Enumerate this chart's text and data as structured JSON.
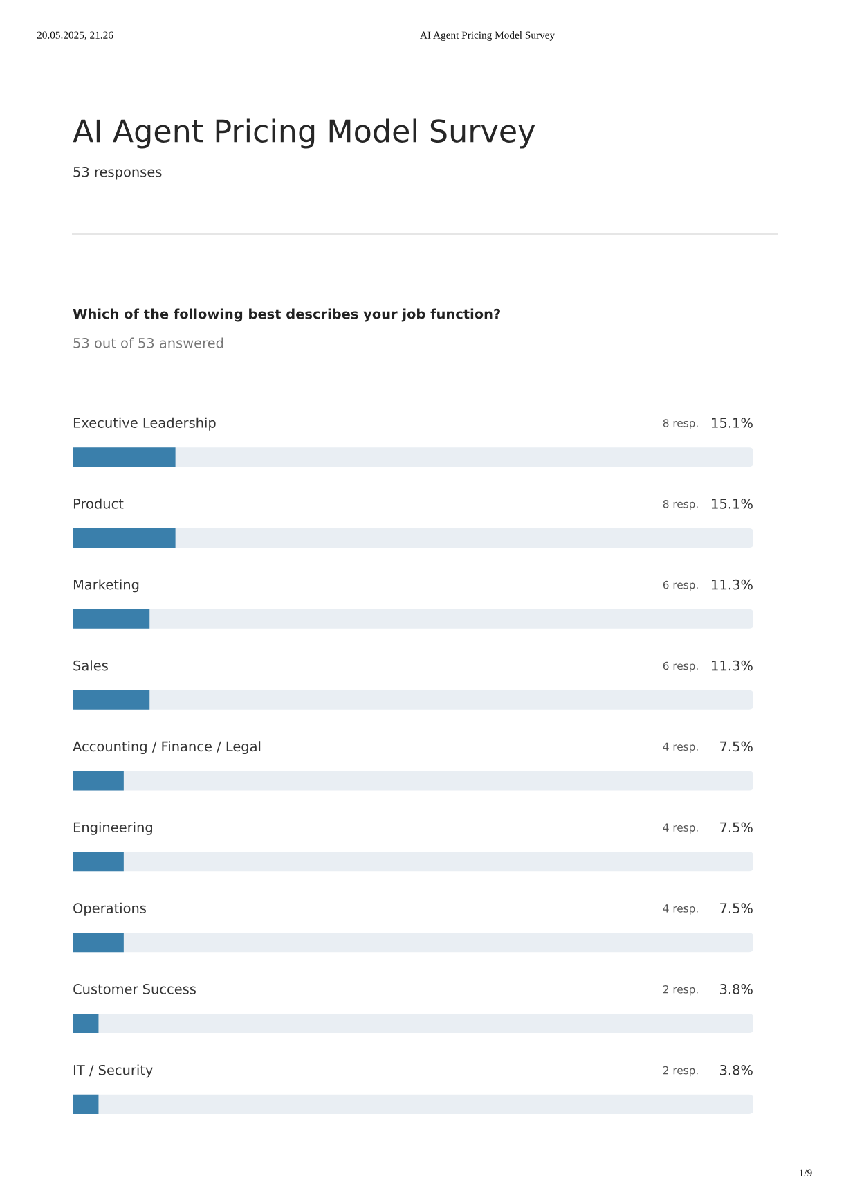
{
  "chart_data": {
    "type": "bar",
    "orientation": "horizontal",
    "title": "AI Agent Pricing Model Survey",
    "subtitle": "53 responses",
    "categories": [
      "Executive Leadership",
      "Product",
      "Marketing",
      "Sales",
      "Accounting / Finance / Legal",
      "Engineering",
      "Operations",
      "Customer Success",
      "IT / Security"
    ],
    "values": [
      15.1,
      15.1,
      11.3,
      11.3,
      7.5,
      7.5,
      7.5,
      3.8,
      3.8
    ],
    "value_labels": [
      "15.1%",
      "15.1%",
      "11.3%",
      "11.3%",
      "7.5%",
      "7.5%",
      "7.5%",
      "3.8%",
      "3.8%"
    ],
    "color": "#3a7fab",
    "xlim": [
      0,
      100
    ],
    "annotations": [
      "20.05.2025, 21.26",
      "AI Agent Pricing Model Survey",
      "Which of the following best describes your job function?",
      "53 out of 53 answered",
      "1/9",
      "8 resp.",
      "8 resp.",
      "6 resp.",
      "6 resp.",
      "4 resp.",
      "4 resp.",
      "4 resp.",
      "2 resp.",
      "2 resp."
    ]
  }
}
